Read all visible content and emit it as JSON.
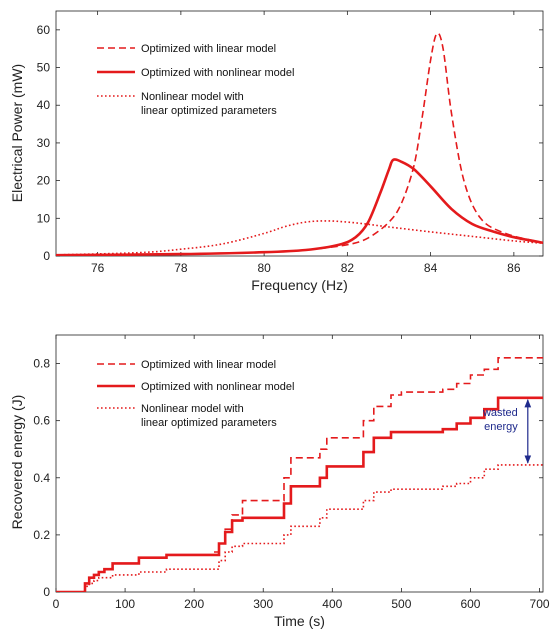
{
  "colors": {
    "series": "#e41a1c",
    "annotation": "#1f2a8c",
    "axis": "#222222"
  },
  "chart_data": [
    {
      "type": "line",
      "xlabel": "Frequency (Hz)",
      "ylabel": "Electrical Power (mW)",
      "xlim": [
        75,
        86.7
      ],
      "ylim": [
        0,
        65
      ],
      "xticks": [
        "76",
        "78",
        "80",
        "82",
        "84",
        "86"
      ],
      "yticks": [
        "0",
        "10",
        "20",
        "30",
        "40",
        "50",
        "60"
      ],
      "legend_position": "upper-left",
      "series": [
        {
          "name": "Optimized with linear model",
          "style": "dashed",
          "x": [
            75,
            78,
            80,
            81,
            82,
            82.5,
            83,
            83.3,
            83.6,
            83.8,
            84.0,
            84.15,
            84.3,
            84.5,
            84.8,
            85.2,
            85.8,
            86.7
          ],
          "y": [
            0.2,
            0.5,
            1.0,
            1.6,
            3.0,
            4.8,
            9,
            14,
            24,
            37,
            52,
            59,
            55,
            38,
            20,
            10,
            6,
            3.5
          ]
        },
        {
          "name": "Optimized with nonlinear model",
          "style": "solid",
          "x": [
            75,
            78,
            80,
            81,
            81.8,
            82.2,
            82.5,
            82.8,
            83.0,
            83.1,
            83.3,
            83.6,
            84.0,
            84.5,
            85.0,
            85.5,
            86.0,
            86.7
          ],
          "y": [
            0.2,
            0.5,
            1.0,
            1.6,
            3.0,
            5.0,
            9,
            17,
            23,
            25.5,
            25,
            23,
            18.5,
            12.5,
            8.5,
            6.5,
            5,
            3.5
          ]
        },
        {
          "name": "Nonlinear model with\nlinear optimized parameters",
          "style": "dotted",
          "x": [
            75,
            77,
            78,
            79,
            80,
            80.5,
            81,
            81.5,
            82,
            82.5,
            83,
            84,
            85,
            86,
            86.7
          ],
          "y": [
            0.3,
            0.9,
            1.8,
            3.2,
            6.0,
            7.8,
            9.0,
            9.3,
            9.0,
            8.4,
            7.7,
            6.4,
            5.2,
            4.0,
            3.4
          ]
        }
      ]
    },
    {
      "type": "line",
      "xlabel": "Time (s)",
      "ylabel": "Recovered energy (J)",
      "xlim": [
        0,
        705
      ],
      "ylim": [
        0,
        0.9
      ],
      "xticks": [
        "0",
        "100",
        "200",
        "300",
        "400",
        "500",
        "600",
        "700"
      ],
      "yticks": [
        "0",
        "0.2",
        "0.4",
        "0.6",
        "0.8"
      ],
      "legend_position": "upper-left",
      "annotation": {
        "text": [
          "wasted",
          "energy"
        ],
        "x": 683,
        "y_from": 0.445,
        "y_to": 0.68
      },
      "series": [
        {
          "name": "Optimized with linear model",
          "style": "dashed",
          "x": [
            0,
            38,
            42,
            48,
            55,
            62,
            70,
            82,
            120,
            160,
            228,
            236,
            245,
            255,
            270,
            322,
            330,
            340,
            375,
            382,
            392,
            430,
            445,
            460,
            485,
            500,
            560,
            580,
            600,
            620,
            640,
            705
          ],
          "y": [
            0,
            0,
            0.03,
            0.05,
            0.06,
            0.07,
            0.08,
            0.1,
            0.12,
            0.13,
            0.14,
            0.17,
            0.22,
            0.27,
            0.32,
            0.32,
            0.4,
            0.47,
            0.47,
            0.5,
            0.54,
            0.54,
            0.6,
            0.65,
            0.69,
            0.7,
            0.71,
            0.73,
            0.76,
            0.78,
            0.82,
            0.82
          ]
        },
        {
          "name": "Optimized with nonlinear model",
          "style": "solid",
          "x": [
            0,
            38,
            42,
            48,
            55,
            62,
            70,
            82,
            120,
            160,
            228,
            236,
            245,
            255,
            270,
            322,
            330,
            340,
            375,
            382,
            392,
            430,
            445,
            460,
            485,
            500,
            560,
            580,
            600,
            620,
            640,
            705
          ],
          "y": [
            0,
            0,
            0.03,
            0.05,
            0.06,
            0.07,
            0.08,
            0.1,
            0.12,
            0.13,
            0.13,
            0.17,
            0.21,
            0.25,
            0.26,
            0.26,
            0.31,
            0.37,
            0.37,
            0.4,
            0.44,
            0.44,
            0.49,
            0.54,
            0.56,
            0.56,
            0.57,
            0.59,
            0.61,
            0.64,
            0.68,
            0.68
          ]
        },
        {
          "name": "Nonlinear model with\nlinear optimized parameters",
          "style": "dotted",
          "x": [
            0,
            38,
            42,
            48,
            55,
            62,
            70,
            82,
            120,
            160,
            228,
            236,
            245,
            255,
            270,
            322,
            330,
            340,
            375,
            382,
            392,
            430,
            445,
            460,
            485,
            500,
            560,
            580,
            600,
            620,
            640,
            705
          ],
          "y": [
            0,
            0,
            0.02,
            0.03,
            0.04,
            0.05,
            0.05,
            0.06,
            0.07,
            0.08,
            0.08,
            0.11,
            0.14,
            0.16,
            0.17,
            0.17,
            0.2,
            0.23,
            0.23,
            0.26,
            0.29,
            0.29,
            0.32,
            0.35,
            0.36,
            0.36,
            0.37,
            0.38,
            0.4,
            0.43,
            0.445,
            0.445
          ]
        }
      ]
    }
  ]
}
